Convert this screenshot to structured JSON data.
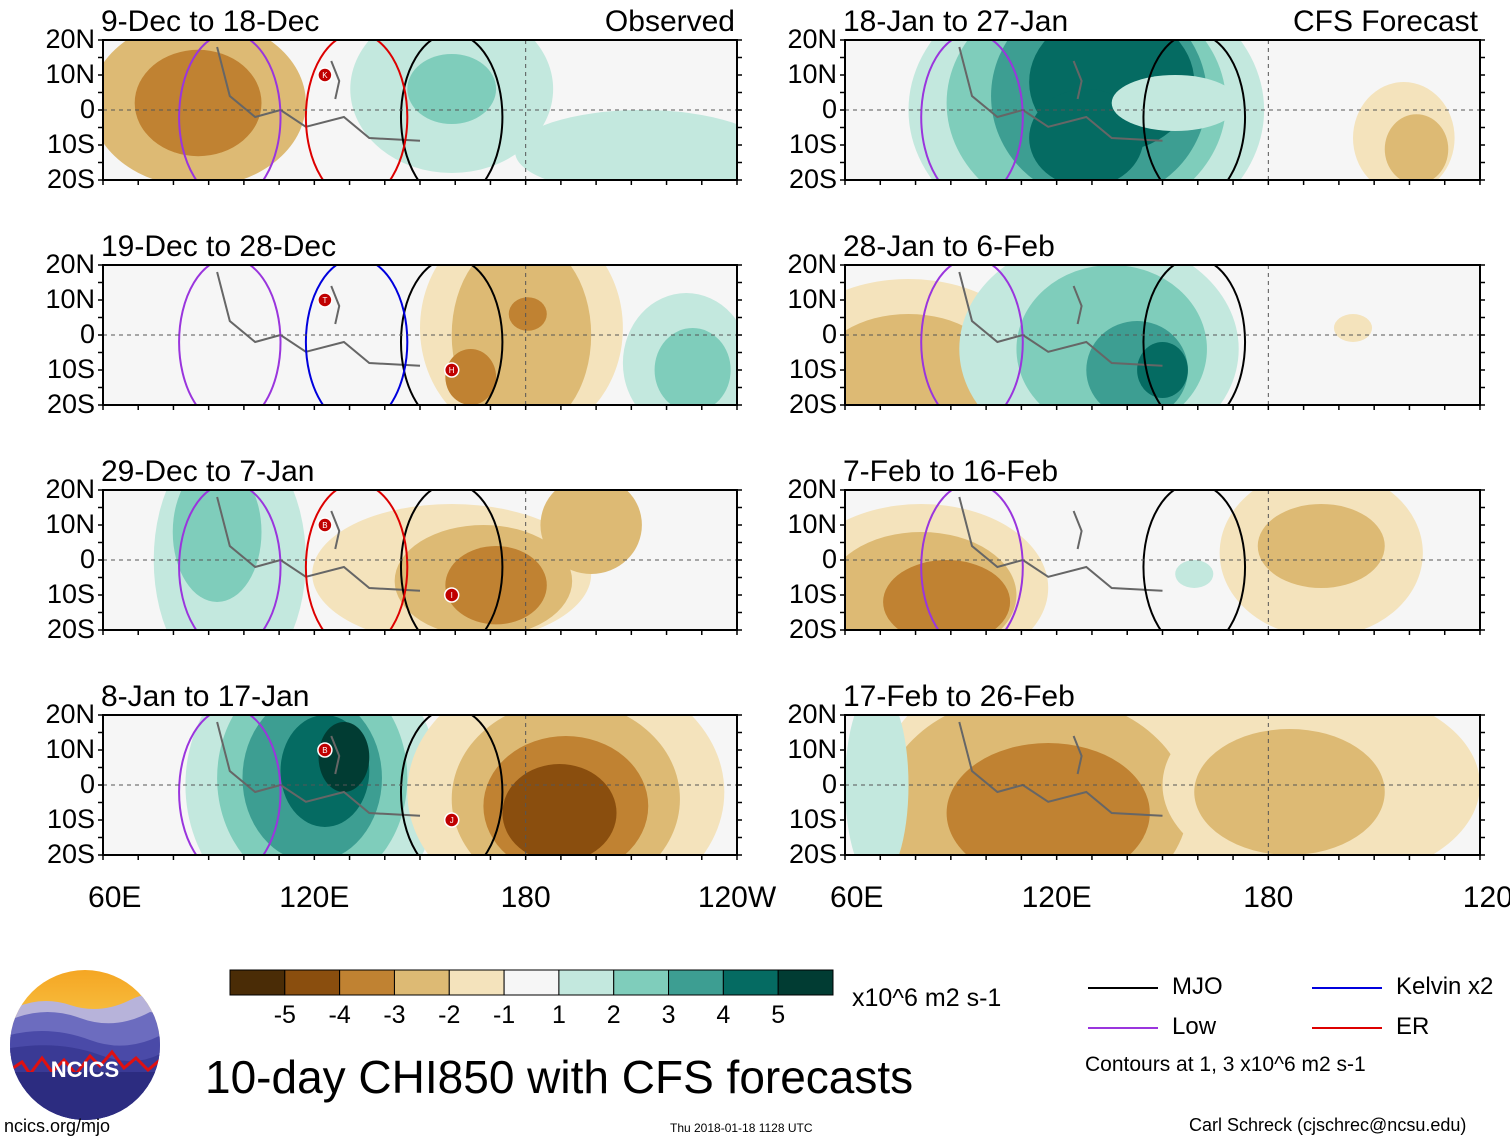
{
  "chart_data": {
    "type": "heatmap",
    "title": "10-day CHI850 with CFS forecasts",
    "variable": "CHI850",
    "units": "x10^6 m2 s-1",
    "lat_ticks": [
      "20N",
      "10N",
      "0",
      "10S",
      "20S"
    ],
    "lon_ticks": [
      "60E",
      "120E",
      "180",
      "120W"
    ],
    "colorbar": {
      "labels": [
        "-5",
        "-4",
        "-3",
        "-2",
        "-1",
        "1",
        "2",
        "3",
        "4",
        "5"
      ],
      "colors": [
        "#4a2c06",
        "#8a4e0e",
        "#c08232",
        "#ddba74",
        "#f4e3bc",
        "#f6f6f6",
        "#c3e8de",
        "#7fcdbb",
        "#3d9e92",
        "#056b62",
        "#013c33"
      ]
    },
    "columns": [
      {
        "label": "Observed",
        "panels": [
          {
            "period": "9-Dec to 18-Dec",
            "storms": [
              "K"
            ],
            "overlays": [
              "MJO",
              "Low",
              "ER"
            ]
          },
          {
            "period": "19-Dec to 28-Dec",
            "storms": [
              "T",
              "H"
            ],
            "overlays": [
              "MJO",
              "Low",
              "Kelvin x2"
            ]
          },
          {
            "period": "29-Dec to 7-Jan",
            "storms": [
              "B",
              "I"
            ],
            "overlays": [
              "MJO",
              "Low",
              "ER"
            ]
          },
          {
            "period": "8-Jan to 17-Jan",
            "storms": [
              "B",
              "J"
            ],
            "overlays": [
              "MJO",
              "Low"
            ]
          }
        ]
      },
      {
        "label": "CFS Forecast",
        "panels": [
          {
            "period": "18-Jan to 27-Jan",
            "overlays": [
              "MJO",
              "Low"
            ]
          },
          {
            "period": "28-Jan to 6-Feb",
            "overlays": [
              "MJO",
              "Low"
            ]
          },
          {
            "period": "7-Feb to 16-Feb",
            "overlays": [
              "MJO",
              "Low"
            ]
          },
          {
            "period": "17-Feb to 26-Feb",
            "overlays": []
          }
        ]
      }
    ],
    "legend": [
      {
        "label": "MJO",
        "color": "#000000"
      },
      {
        "label": "Kelvin x2",
        "color": "#0000dd"
      },
      {
        "label": "Low",
        "color": "#9a35dd"
      },
      {
        "label": "ER",
        "color": "#dd0000"
      }
    ],
    "contour_note": "Contours at 1, 3 x10^6 m2 s-1"
  },
  "footer": {
    "logo_text": "NCICS",
    "site": "ncics.org/mjo",
    "timestamp": "Thu 2018-01-18 1128 UTC",
    "credit": "Carl Schreck (cjschrec@ncsu.edu)"
  }
}
